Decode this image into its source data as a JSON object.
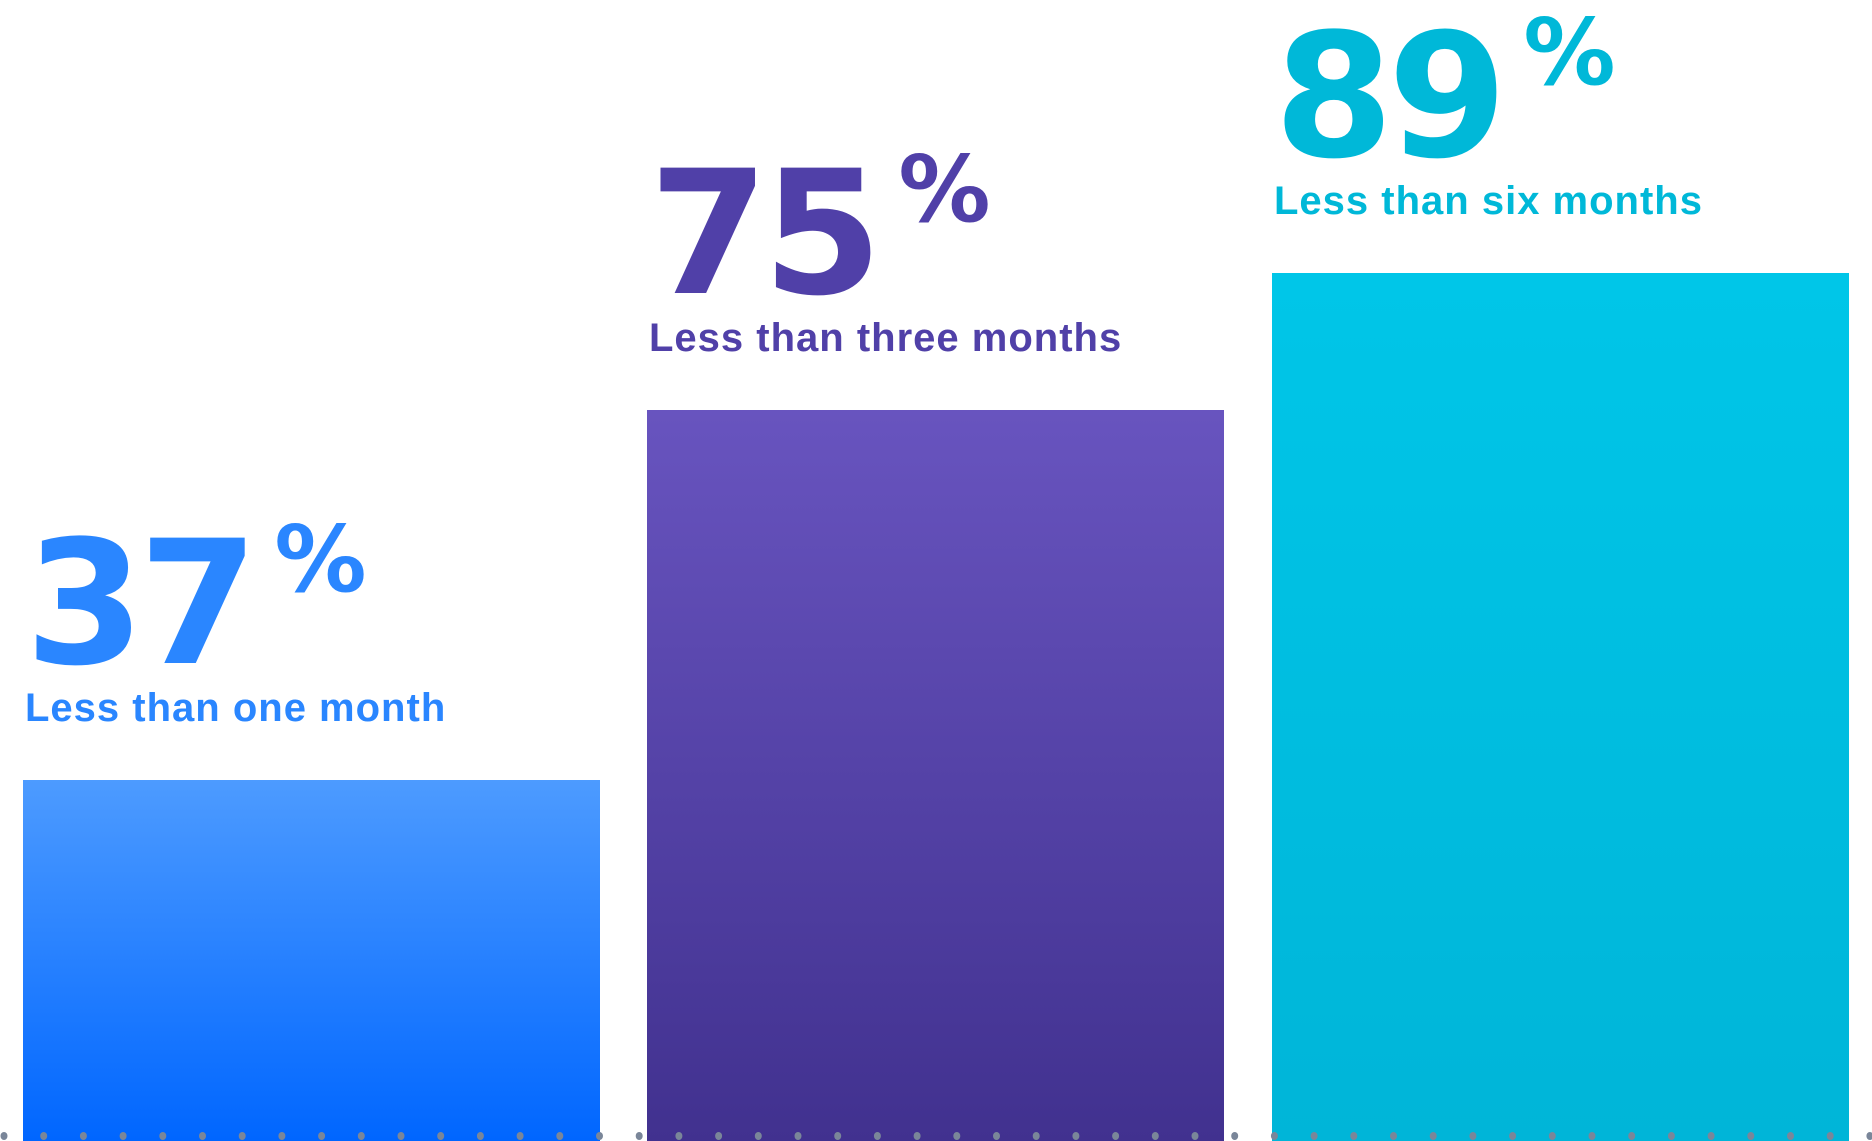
{
  "chart_data": {
    "type": "bar",
    "categories": [
      "Less than one month",
      "Less than three months",
      "Less than six months"
    ],
    "values": [
      37,
      75,
      89
    ],
    "value_suffix": "%",
    "ylim": [
      0,
      100
    ],
    "grid": false,
    "title": "",
    "xlabel": "",
    "ylabel": "",
    "colors": [
      {
        "text": "#2a86ff",
        "top": "#4d9bff",
        "bottom": "#0066ff"
      },
      {
        "text": "#5040a8",
        "top": "#6854bf",
        "bottom": "#41318f"
      },
      {
        "text": "#00b8d8",
        "top": "#00c6e8",
        "bottom": "#00b5d8"
      }
    ],
    "baseline_dot_color": "#7a8699"
  }
}
